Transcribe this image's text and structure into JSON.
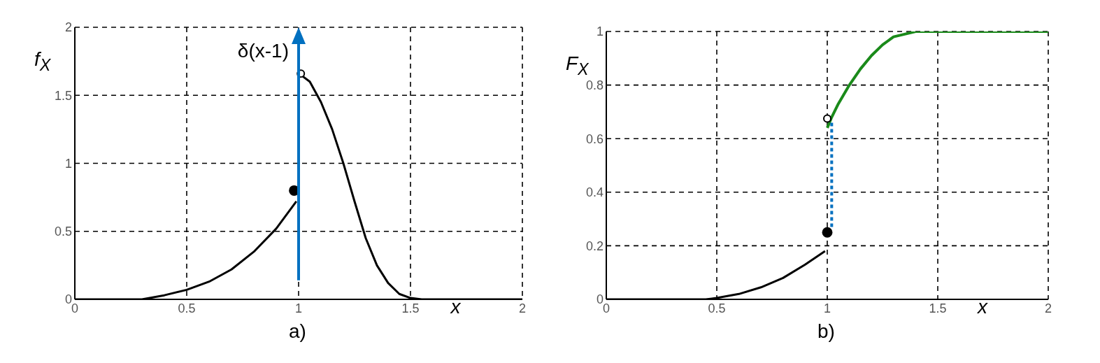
{
  "chart_data": [
    {
      "type": "line",
      "ylabel": "f$_{X}$",
      "xlabel": "x",
      "xlim": [
        0,
        2
      ],
      "ylim": [
        0,
        2
      ],
      "xticks": [
        0,
        0.5,
        1,
        1.5,
        2
      ],
      "yticks": [
        0,
        0.5,
        1,
        1.5,
        2
      ],
      "grid": true,
      "marker": "none",
      "line_style": "solid",
      "annotations": [
        "a)"
      ],
      "ref_lines": [
        {
          "axis": "x",
          "value": 1,
          "label": "δ(x-1)",
          "color": "#0070c0"
        }
      ],
      "series": [
        {
          "color": "#000000",
          "x": [
            0,
            0.3,
            0.4,
            0.5,
            0.6,
            0.7,
            0.8,
            0.9,
            0.99
          ],
          "values": [
            0,
            0,
            0.03,
            0.07,
            0.13,
            0.22,
            0.35,
            0.52,
            0.72
          ]
        },
        {
          "color": "#000000",
          "x": [
            1.01,
            1.05,
            1.1,
            1.15,
            1.2,
            1.25,
            1.3,
            1.35,
            1.4,
            1.45,
            1.5,
            1.55,
            2
          ],
          "values": [
            1.65,
            1.6,
            1.45,
            1.25,
            1.0,
            0.72,
            0.45,
            0.25,
            0.12,
            0.04,
            0.01,
            0,
            0
          ]
        },
        {
          "type": "scatter",
          "color": "#000000",
          "x": [
            0.98
          ],
          "values": [
            0.8
          ],
          "marker": "circle"
        },
        {
          "type": "scatter",
          "color": "#ffffff",
          "x": [
            1.01
          ],
          "values": [
            1.66
          ],
          "marker": "circle"
        }
      ]
    },
    {
      "type": "line",
      "ylabel": "F$_{X}$",
      "xlabel": "x",
      "xlim": [
        0,
        2
      ],
      "ylim": [
        0,
        1
      ],
      "xticks": [
        0,
        0.5,
        1,
        1.5,
        2
      ],
      "yticks": [
        0,
        0.2,
        0.4,
        0.6,
        0.8,
        1
      ],
      "grid": true,
      "marker": "none",
      "line_style": "solid",
      "annotations": [
        "b)"
      ],
      "series": [
        {
          "color": "#000000",
          "x": [
            0,
            0.45,
            0.5,
            0.6,
            0.7,
            0.8,
            0.9,
            0.99
          ],
          "values": [
            0,
            0,
            0.005,
            0.02,
            0.045,
            0.08,
            0.13,
            0.18
          ]
        },
        {
          "color": "#1a8a1a",
          "x": [
            1,
            1.02,
            1.05,
            1.1,
            1.15,
            1.2,
            1.25,
            1.3,
            1.35,
            1.4,
            2
          ],
          "values": [
            0.64,
            0.68,
            0.73,
            0.8,
            0.86,
            0.91,
            0.95,
            0.98,
            0.99,
            1,
            1
          ]
        },
        {
          "color": "#0070c0",
          "x": [
            1.02,
            1.02
          ],
          "values": [
            0.27,
            0.66
          ],
          "line_style": "dotted"
        },
        {
          "type": "scatter",
          "color": "#000000",
          "x": [
            1.0
          ],
          "values": [
            0.25
          ],
          "marker": "circle"
        },
        {
          "type": "scatter",
          "color": "#ffffff",
          "x": [
            1.0
          ],
          "values": [
            0.675
          ],
          "marker": "circle"
        }
      ]
    }
  ]
}
